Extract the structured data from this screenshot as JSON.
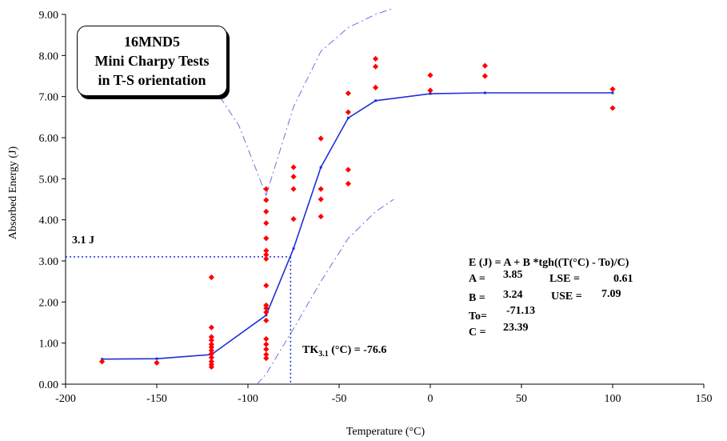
{
  "chart_data": {
    "type": "scatter",
    "title_lines": [
      "16MND5",
      "Mini Charpy Tests",
      "in T-S orientation"
    ],
    "xlabel": "Temperature (°C)",
    "ylabel": "Absorbed Energy (J)",
    "xlim": [
      -200,
      150
    ],
    "ylim": [
      0,
      9
    ],
    "x_ticks": [
      -200,
      -150,
      -100,
      -50,
      0,
      50,
      100,
      150
    ],
    "x_tick_labels": [
      "-200",
      "-150",
      "-100",
      "-50",
      "0",
      "50",
      "100",
      "150"
    ],
    "y_ticks": [
      0,
      1,
      2,
      3,
      4,
      5,
      6,
      7,
      8,
      9
    ],
    "y_tick_labels": [
      "0.00",
      "1.00",
      "2.00",
      "3.00",
      "4.00",
      "5.00",
      "6.00",
      "7.00",
      "8.00",
      "9.00"
    ],
    "grid": false,
    "series": [
      {
        "kind": "points",
        "color": "#ff0000",
        "points": [
          [
            -180,
            0.55
          ],
          [
            -150,
            0.52
          ],
          [
            -120,
            2.6
          ],
          [
            -120,
            1.38
          ],
          [
            -120,
            1.15
          ],
          [
            -120,
            1.07
          ],
          [
            -120,
            0.97
          ],
          [
            -120,
            0.9
          ],
          [
            -120,
            0.82
          ],
          [
            -120,
            0.74
          ],
          [
            -120,
            0.65
          ],
          [
            -120,
            0.55
          ],
          [
            -120,
            0.48
          ],
          [
            -120,
            0.42
          ],
          [
            -90,
            4.75
          ],
          [
            -90,
            4.48
          ],
          [
            -90,
            4.2
          ],
          [
            -90,
            3.92
          ],
          [
            -90,
            3.55
          ],
          [
            -90,
            3.25
          ],
          [
            -90,
            3.15
          ],
          [
            -90,
            3.05
          ],
          [
            -90,
            2.4
          ],
          [
            -90,
            1.92
          ],
          [
            -90,
            1.85
          ],
          [
            -90,
            1.75
          ],
          [
            -90,
            1.55
          ],
          [
            -90,
            1.1
          ],
          [
            -90,
            0.97
          ],
          [
            -90,
            0.85
          ],
          [
            -90,
            0.72
          ],
          [
            -90,
            0.63
          ],
          [
            -75,
            5.28
          ],
          [
            -75,
            5.05
          ],
          [
            -75,
            4.75
          ],
          [
            -75,
            4.02
          ],
          [
            -60,
            5.98
          ],
          [
            -60,
            4.75
          ],
          [
            -60,
            4.5
          ],
          [
            -60,
            4.08
          ],
          [
            -45,
            7.08
          ],
          [
            -45,
            6.62
          ],
          [
            -45,
            5.22
          ],
          [
            -45,
            4.88
          ],
          [
            -30,
            7.92
          ],
          [
            -30,
            7.73
          ],
          [
            -30,
            7.22
          ],
          [
            0,
            7.52
          ],
          [
            0,
            7.15
          ],
          [
            30,
            7.75
          ],
          [
            30,
            7.5
          ],
          [
            100,
            7.18
          ],
          [
            100,
            6.72
          ]
        ]
      },
      {
        "kind": "fit",
        "color": "#1f2fd6",
        "points": [
          [
            -180,
            0.61
          ],
          [
            -150,
            0.62
          ],
          [
            -120,
            0.72
          ],
          [
            -90,
            1.68
          ],
          [
            -75,
            3.3
          ],
          [
            -60,
            5.28
          ],
          [
            -45,
            6.48
          ],
          [
            -30,
            6.9
          ],
          [
            0,
            7.07
          ],
          [
            30,
            7.09
          ],
          [
            100,
            7.09
          ]
        ]
      },
      {
        "kind": "band-upper",
        "color": "#6f6fe0",
        "points": [
          [
            -120,
            7.3
          ],
          [
            -105,
            6.3
          ],
          [
            -90,
            4.6
          ],
          [
            -75,
            6.75
          ],
          [
            -60,
            8.1
          ],
          [
            -45,
            8.68
          ],
          [
            -30,
            9.0
          ],
          [
            -20,
            9.15
          ]
        ]
      },
      {
        "kind": "band-lower",
        "color": "#6f6fe0",
        "points": [
          [
            -95,
            0.0
          ],
          [
            -90,
            0.25
          ],
          [
            -75,
            1.35
          ],
          [
            -60,
            2.5
          ],
          [
            -45,
            3.55
          ],
          [
            -30,
            4.2
          ],
          [
            -20,
            4.5
          ]
        ]
      }
    ],
    "reference": {
      "energy": 3.1,
      "temperature": -76.6,
      "energy_label": "3.1 J",
      "tk_label_main": "TK",
      "tk_label_sub": "3.1",
      "tk_label_rest": " (°C) = -76.6"
    },
    "equation": {
      "formula": "E (J) = A + B *tgh((T(°C) - To)/C)",
      "a_label": "A =",
      "a_value": "3.85",
      "b_label": "B =",
      "b_value": "3.24",
      "to_label": "To=",
      "to_value": "-71.13",
      "c_label": "C =",
      "c_value": "23.39",
      "lse_label": "LSE =",
      "lse_value": "0.61",
      "use_label": "USE =",
      "use_value": "7.09"
    }
  }
}
